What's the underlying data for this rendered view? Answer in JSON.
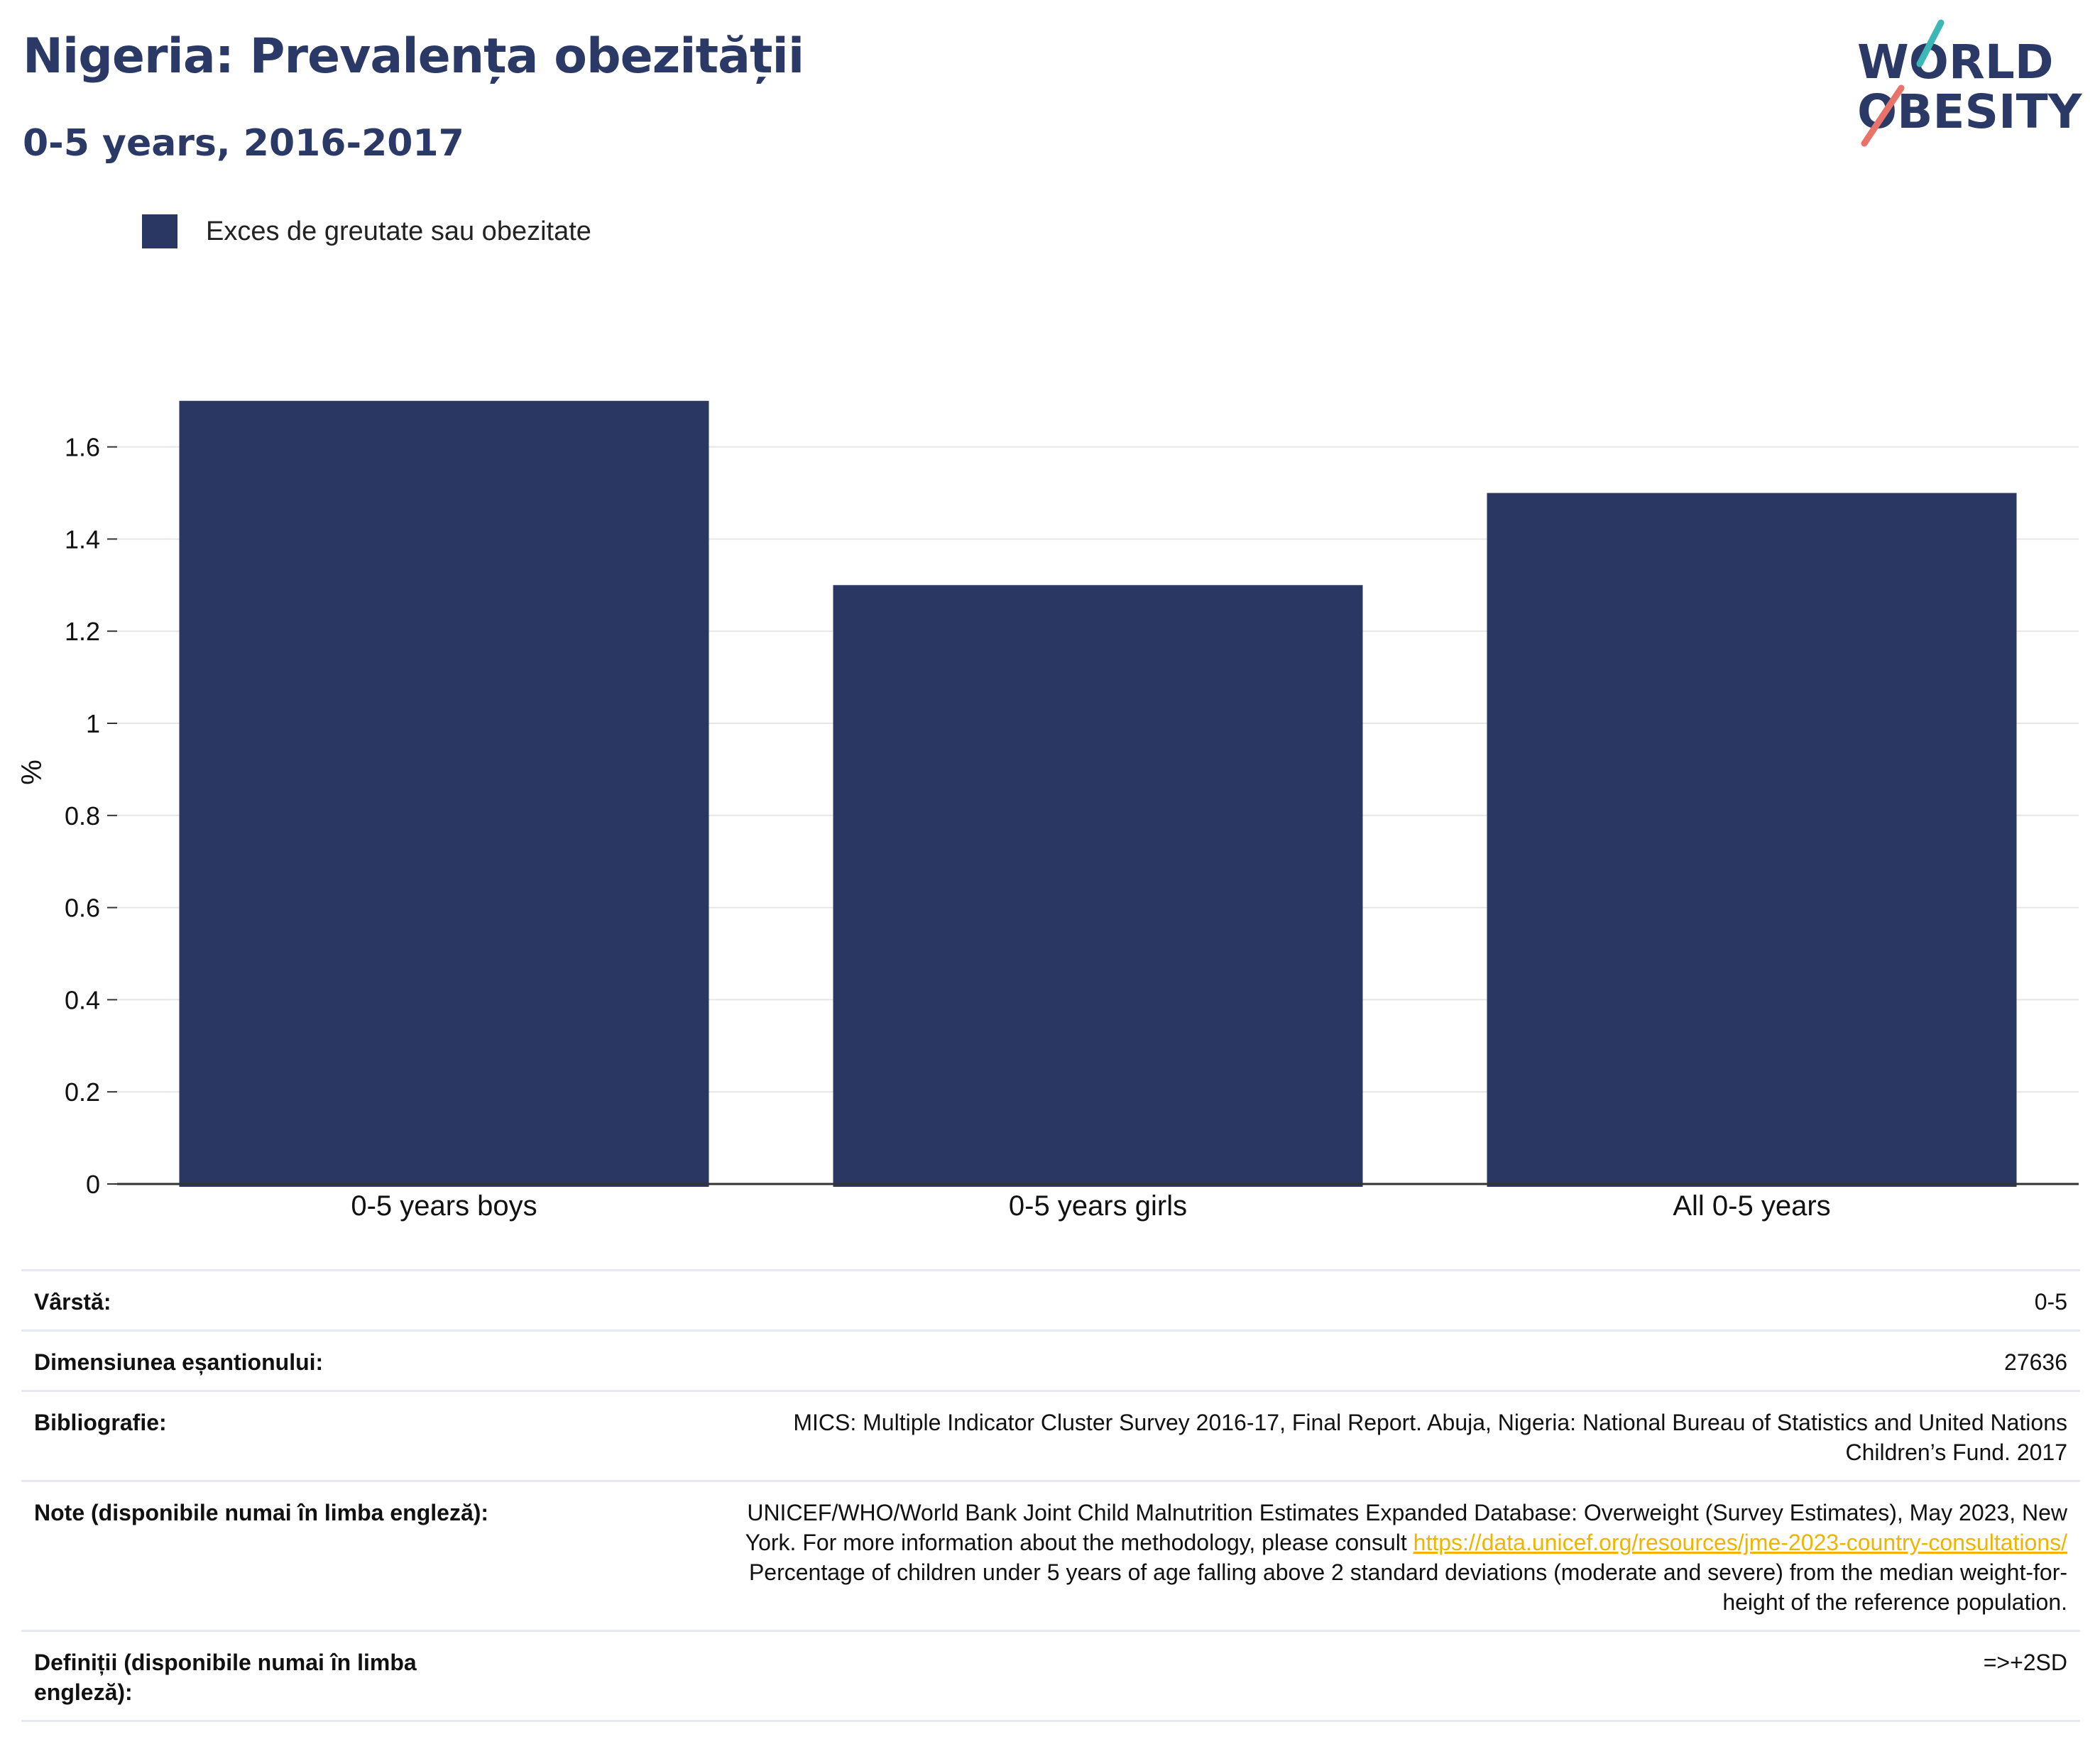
{
  "header": {
    "title": "Nigeria: Prevalența obezității",
    "subtitle": "0-5 years, 2016-2017"
  },
  "logo": {
    "line1": "WORLD",
    "line2": "OBESITY"
  },
  "colors": {
    "bar": "#2b3763",
    "title": "#2b3966",
    "link": "#f0b400",
    "logo_teal": "#3bb8b5",
    "logo_coral": "#e8736a"
  },
  "chart_data": {
    "type": "bar",
    "categories": [
      "0-5 years boys",
      "0-5 years girls",
      "All 0-5 years"
    ],
    "series": [
      {
        "name": "Exces de greutate sau obezitate",
        "values": [
          1.7,
          1.3,
          1.5
        ]
      }
    ],
    "ylabel": "%",
    "ylim": [
      0,
      1.77
    ],
    "yticks": [
      0,
      0.2,
      0.4,
      0.6,
      0.8,
      1,
      1.2,
      1.4,
      1.6
    ],
    "ytick_labels": [
      "0",
      "0.2",
      "0.4",
      "0.6",
      "0.8",
      "1",
      "1.2",
      "1.4",
      "1.6"
    ],
    "grid": true,
    "legend_position": "top-left"
  },
  "info": {
    "age_label": "Vârstă:",
    "age_value": "0-5",
    "sample_label": "Dimensiunea eșantionului:",
    "sample_value": "27636",
    "bib_label": "Bibliografie:",
    "bib_line1": "MICS: Multiple Indicator Cluster Survey 2016-17, Final Report. Abuja, Nigeria: National Bureau of Statistics and United Nations",
    "bib_line2": "Children’s Fund. 2017",
    "notes_label": "Note (disponibile numai în limba engleză):",
    "notes_line1": "UNICEF/WHO/World Bank Joint Child Malnutrition Estimates Expanded Database: Overweight (Survey Estimates), May 2023, New",
    "notes_line2_prefix": "York. For more information about the methodology, please consult",
    "notes_link": "https://data.unicef.org/resources/jme-2023-country-consultations/",
    "notes_line3": "Percentage of children under 5 years of age falling above 2 standard deviations (moderate and severe) from the median weight-for-",
    "notes_line4": "height of the reference population.",
    "def_label_line1": "Definiții (disponibile numai în limba",
    "def_label_line2": "engleză):",
    "def_value": "=>+2SD"
  }
}
